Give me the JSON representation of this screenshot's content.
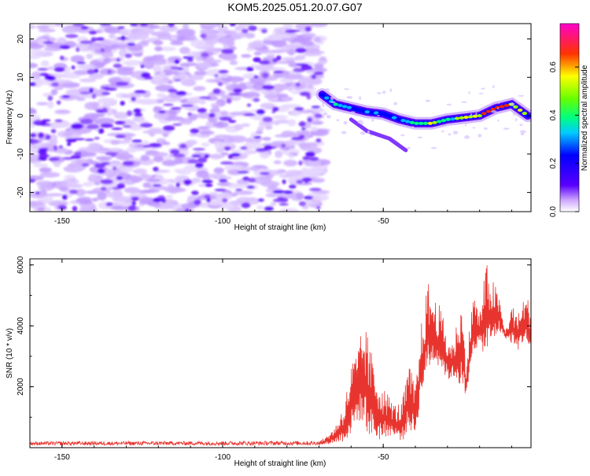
{
  "title": "KOM5.2025.051.20.07.G07",
  "chart_data": [
    {
      "type": "heatmap",
      "xlabel": "Height of straight line (km)",
      "ylabel": "Frequency (Hz)",
      "xlim": [
        -160,
        -4
      ],
      "ylim": [
        -25,
        24
      ],
      "xticks": [
        -150,
        -100,
        -50
      ],
      "yticks": [
        -20,
        -10,
        0,
        10,
        20
      ],
      "colorbar": {
        "label": "Normalized spectral amplitude",
        "range": [
          0.0,
          0.78
        ],
        "ticks": [
          0.0,
          0.2,
          0.4,
          0.6
        ],
        "colormap": [
          "#ffffff",
          "#5a00ff",
          "#0000ff",
          "#00ffff",
          "#00ff00",
          "#ffff00",
          "#ff0000",
          "#ff00ff"
        ]
      },
      "signal_ridge": {
        "x": [
          -69,
          -65,
          -60,
          -55,
          -50,
          -45,
          -40,
          -35,
          -30,
          -25,
          -20,
          -15,
          -10,
          -5
        ],
        "frequency": [
          5.5,
          3,
          2,
          1,
          0.5,
          -1,
          -2,
          -2,
          -1,
          -0.5,
          0,
          2,
          3,
          0
        ],
        "amplitude": [
          0.3,
          0.45,
          0.35,
          0.3,
          0.3,
          0.35,
          0.45,
          0.55,
          0.5,
          0.6,
          0.65,
          0.7,
          0.6,
          0.6
        ]
      },
      "noise_region_x": [
        -160,
        -70
      ]
    },
    {
      "type": "line",
      "xlabel": "Height of straight line (km)",
      "ylabel": "SNR (10 * v/v)",
      "xlim": [
        -160,
        -4
      ],
      "ylim": [
        0,
        6200
      ],
      "xticks": [
        -150,
        -100,
        -50
      ],
      "yticks": [
        2000,
        4000,
        6000
      ],
      "color": "#e8342e",
      "envelope": {
        "x": [
          -160,
          -70,
          -68,
          -65,
          -62,
          -60,
          -58,
          -56,
          -54,
          -52,
          -50,
          -48,
          -46,
          -44,
          -42,
          -40,
          -38,
          -36,
          -34,
          -32,
          -30,
          -28,
          -26,
          -24,
          -22,
          -20,
          -18,
          -16,
          -14,
          -12,
          -10,
          -8,
          -6,
          -4
        ],
        "low": [
          80,
          80,
          100,
          150,
          200,
          400,
          900,
          700,
          300,
          200,
          300,
          400,
          300,
          200,
          600,
          400,
          1800,
          2500,
          2800,
          2600,
          2200,
          2300,
          2000,
          1500,
          3200,
          3300,
          3000,
          3400,
          3800,
          3600,
          3400,
          3200,
          3500,
          3000
        ],
        "high": [
          200,
          220,
          350,
          700,
          1500,
          2800,
          3200,
          4200,
          3300,
          2500,
          2000,
          1700,
          1400,
          1600,
          2800,
          2000,
          4200,
          5500,
          4900,
          4600,
          3600,
          3500,
          5000,
          3000,
          5200,
          4400,
          6100,
          5600,
          5000,
          3800,
          4700,
          4400,
          5000,
          4800
        ]
      }
    }
  ]
}
